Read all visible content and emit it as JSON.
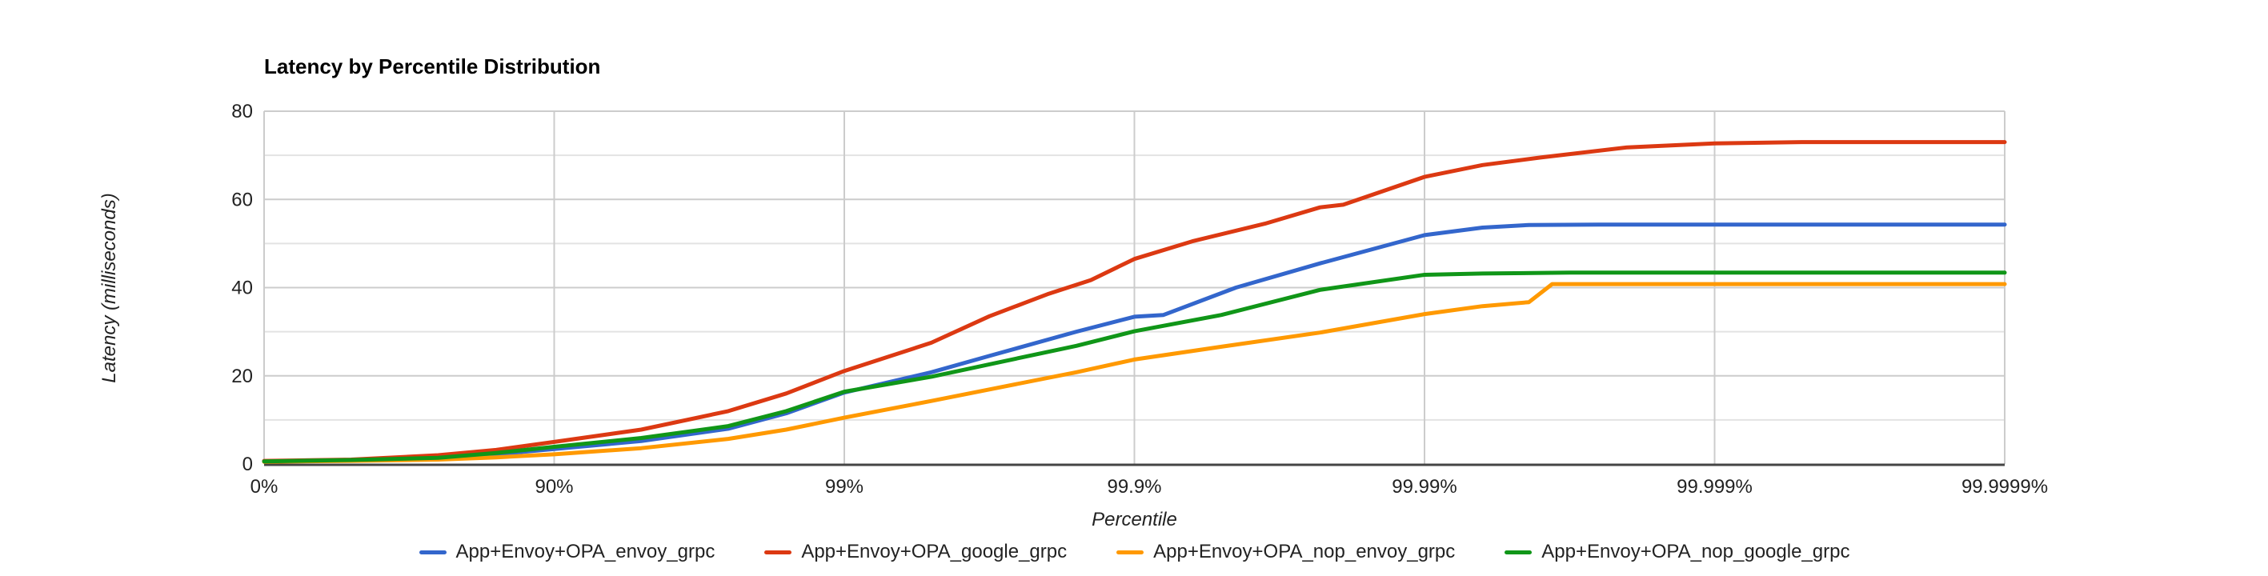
{
  "page": {
    "background": "#ffffff"
  },
  "chart_data": {
    "type": "line",
    "title": "Latency by Percentile Distribution",
    "xlabel": "Percentile",
    "ylabel": "Latency (milliseconds)",
    "legend_position": "bottom",
    "grid": true,
    "x_axis": {
      "scale": "log-percentile",
      "note": "x unit below is 'nines': 0=0%, 1=90%, 2=99%, 3=99.9%, 4=99.99%, 5=99.999%, 6=99.9999%; ticks evenly spaced",
      "tick_labels": [
        "0%",
        "90%",
        "99%",
        "99.9%",
        "99.99%",
        "99.999%",
        "99.9999%"
      ]
    },
    "y_axis": {
      "min": 0,
      "max": 80,
      "major_step": 20,
      "minor_step": 10,
      "tick_labels": [
        "0",
        "20",
        "40",
        "60",
        "80"
      ]
    },
    "colors": {
      "grid_major": "#cccccc",
      "grid_minor": "#e3e3e3",
      "axis_line": "#444444",
      "text": "#222222"
    },
    "series": [
      {
        "name": "App+Envoy+OPA_envoy_grpc",
        "color": "#3366cc",
        "values_at_ticks": {
          "0%": 0.6,
          "90%": 3.4,
          "99%": 16.2,
          "99.9%": 33.4,
          "99.99%": 51.9,
          "99.999%": 54.3,
          "99.9999%": 54.3
        },
        "points": [
          [
            0,
            0.6
          ],
          [
            0.3,
            0.8
          ],
          [
            0.6,
            1.3
          ],
          [
            0.8,
            2.2
          ],
          [
            1,
            3.4
          ],
          [
            1.3,
            5.2
          ],
          [
            1.6,
            8.0
          ],
          [
            1.8,
            11.5
          ],
          [
            2,
            16.2
          ],
          [
            2.3,
            20.8
          ],
          [
            2.5,
            24.5
          ],
          [
            2.8,
            30.0
          ],
          [
            3,
            33.4
          ],
          [
            3.1,
            33.8
          ],
          [
            3.35,
            40.0
          ],
          [
            3.64,
            45.5
          ],
          [
            4,
            51.9
          ],
          [
            4.2,
            53.6
          ],
          [
            4.36,
            54.2
          ],
          [
            4.6,
            54.3
          ],
          [
            5,
            54.3
          ],
          [
            6,
            54.3
          ]
        ]
      },
      {
        "name": "App+Envoy+OPA_google_grpc",
        "color": "#dc3912",
        "values_at_ticks": {
          "0%": 0.7,
          "90%": 5.0,
          "99%": 21.1,
          "99.9%": 46.5,
          "99.99%": 65.1,
          "99.999%": 72.7,
          "99.9999%": 73.0
        },
        "points": [
          [
            0,
            0.7
          ],
          [
            0.3,
            1.0
          ],
          [
            0.6,
            2.0
          ],
          [
            0.8,
            3.2
          ],
          [
            1,
            5.0
          ],
          [
            1.3,
            7.8
          ],
          [
            1.6,
            12.0
          ],
          [
            1.8,
            16.0
          ],
          [
            2,
            21.1
          ],
          [
            2.3,
            27.5
          ],
          [
            2.5,
            33.5
          ],
          [
            2.7,
            38.5
          ],
          [
            2.85,
            41.7
          ],
          [
            3,
            46.5
          ],
          [
            3.2,
            50.5
          ],
          [
            3.45,
            54.5
          ],
          [
            3.64,
            58.2
          ],
          [
            3.72,
            58.8
          ],
          [
            4,
            65.1
          ],
          [
            4.2,
            67.8
          ],
          [
            4.4,
            69.5
          ],
          [
            4.7,
            71.8
          ],
          [
            5,
            72.7
          ],
          [
            5.3,
            73.0
          ],
          [
            6,
            73.0
          ]
        ]
      },
      {
        "name": "App+Envoy+OPA_nop_envoy_grpc",
        "color": "#ff9900",
        "values_at_ticks": {
          "0%": 0.5,
          "90%": 2.2,
          "99%": 10.5,
          "99.9%": 23.7,
          "99.99%": 34.0,
          "99.999%": 40.8,
          "99.9999%": 40.8
        },
        "points": [
          [
            0,
            0.5
          ],
          [
            0.3,
            0.7
          ],
          [
            0.6,
            1.0
          ],
          [
            0.8,
            1.5
          ],
          [
            1,
            2.2
          ],
          [
            1.3,
            3.6
          ],
          [
            1.6,
            5.7
          ],
          [
            1.8,
            7.8
          ],
          [
            2,
            10.5
          ],
          [
            2.3,
            14.3
          ],
          [
            2.5,
            16.9
          ],
          [
            2.8,
            20.8
          ],
          [
            3,
            23.7
          ],
          [
            3.3,
            26.6
          ],
          [
            3.64,
            29.8
          ],
          [
            4,
            34.0
          ],
          [
            4.2,
            35.8
          ],
          [
            4.36,
            36.7
          ],
          [
            4.44,
            40.8
          ],
          [
            5,
            40.8
          ],
          [
            6,
            40.8
          ]
        ]
      },
      {
        "name": "App+Envoy+OPA_nop_google_grpc",
        "color": "#109618",
        "values_at_ticks": {
          "0%": 0.6,
          "90%": 3.9,
          "99%": 16.4,
          "99.9%": 30.1,
          "99.99%": 42.9,
          "99.999%": 43.4,
          "99.9999%": 43.4
        },
        "points": [
          [
            0,
            0.6
          ],
          [
            0.3,
            0.9
          ],
          [
            0.6,
            1.4
          ],
          [
            0.8,
            2.5
          ],
          [
            1,
            3.9
          ],
          [
            1.3,
            5.9
          ],
          [
            1.6,
            8.6
          ],
          [
            1.8,
            12.0
          ],
          [
            2,
            16.4
          ],
          [
            2.3,
            19.8
          ],
          [
            2.5,
            22.6
          ],
          [
            2.8,
            26.8
          ],
          [
            3,
            30.1
          ],
          [
            3.3,
            33.8
          ],
          [
            3.64,
            39.5
          ],
          [
            4,
            42.9
          ],
          [
            4.2,
            43.2
          ],
          [
            4.5,
            43.4
          ],
          [
            5,
            43.4
          ],
          [
            6,
            43.4
          ]
        ]
      }
    ]
  }
}
